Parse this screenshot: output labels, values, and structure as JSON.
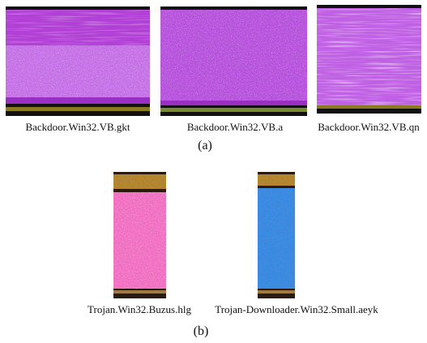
{
  "figure": {
    "panels": [
      {
        "label": "(a)",
        "images": [
          {
            "caption": "Backdoor.Win32.VB.gkt"
          },
          {
            "caption": "Backdoor.Win32.VB.a"
          },
          {
            "caption": "Backdoor.Win32.VB.qn"
          }
        ]
      },
      {
        "label": "(b)",
        "images": [
          {
            "caption": "Trojan.Win32.Buzus.hlg"
          },
          {
            "caption": "Trojan-Downloader.Win32.Small.aeyk"
          }
        ]
      }
    ]
  }
}
